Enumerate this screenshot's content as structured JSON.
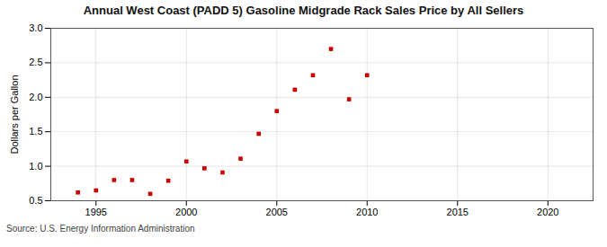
{
  "chart_data": {
    "type": "scatter",
    "title": "Annual West Coast (PADD 5) Gasoline Midgrade Rack Sales Price by All Sellers",
    "ylabel": "Dollars per Gallon",
    "source": "Source: U.S. Energy Information Administration",
    "x": [
      1994,
      1995,
      1996,
      1997,
      1998,
      1999,
      2000,
      2001,
      2002,
      2003,
      2004,
      2005,
      2006,
      2007,
      2008,
      2009,
      2010
    ],
    "values": [
      0.62,
      0.65,
      0.8,
      0.8,
      0.6,
      0.79,
      1.07,
      0.97,
      0.91,
      1.11,
      1.47,
      1.8,
      2.11,
      2.32,
      2.7,
      1.97,
      2.32
    ],
    "color": "#cc0000",
    "marker": "square",
    "xlim": [
      1992.5,
      2022.5
    ],
    "ylim": [
      0.5,
      3.0
    ],
    "xticks": [
      1995,
      2000,
      2005,
      2010,
      2015,
      2020
    ],
    "yticks": [
      0.5,
      {
        "value": 1.0,
        "label": "1.0"
      },
      1.5,
      {
        "value": 2.0,
        "label": "2.0"
      },
      2.5,
      {
        "value": 3.0,
        "label": "3.0"
      }
    ],
    "grid": true
  }
}
